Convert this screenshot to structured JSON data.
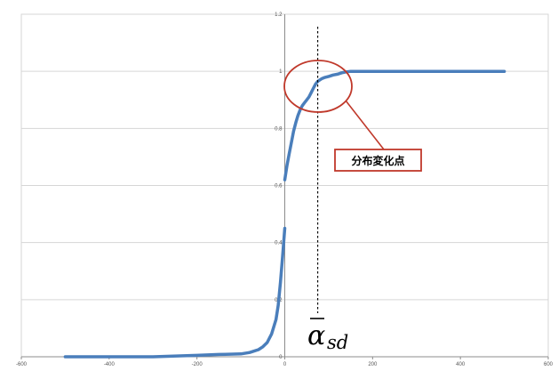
{
  "chart_data": {
    "type": "line",
    "title": "",
    "xlabel": "",
    "ylabel": "",
    "xlim": [
      -600,
      600
    ],
    "ylim": [
      0,
      1.2
    ],
    "x_ticks": [
      "-600",
      "-400",
      "-200",
      "0",
      "200",
      "400",
      "600"
    ],
    "y_ticks": [
      "0",
      "0.2",
      "0.4",
      "0.6",
      "0.8",
      "1",
      "1.2"
    ],
    "grid": true,
    "legend": "none",
    "series": [
      {
        "segments": [
          {
            "x": [
              -500,
              -400,
              -300,
              -200,
              -150,
              -100,
              -80,
              -60,
              -50,
              -40,
              -30,
              -20,
              -15,
              -10,
              -5,
              0
            ],
            "y": [
              0,
              0,
              0,
              0.005,
              0.008,
              0.01,
              0.015,
              0.025,
              0.035,
              0.05,
              0.08,
              0.13,
              0.18,
              0.26,
              0.35,
              0.45
            ]
          },
          {
            "x": [
              0,
              5,
              10,
              15,
              20,
              25,
              30,
              35,
              40,
              45,
              50,
              55,
              60,
              65,
              70,
              75,
              80,
              85,
              90,
              100,
              110,
              120,
              130,
              140,
              150,
              175,
              200,
              300,
              400,
              500
            ],
            "y": [
              0.62,
              0.67,
              0.71,
              0.75,
              0.79,
              0.82,
              0.845,
              0.865,
              0.88,
              0.89,
              0.9,
              0.91,
              0.925,
              0.94,
              0.955,
              0.965,
              0.97,
              0.975,
              0.978,
              0.982,
              0.987,
              0.99,
              0.995,
              0.998,
              1,
              1,
              1,
              1,
              1,
              1
            ]
          }
        ]
      }
    ],
    "annotations": {
      "change_point_x": 75,
      "callout_label": "分布変化点",
      "symbol_base": "α",
      "symbol_subscript": "sd",
      "line_color": "#4a7ebb",
      "annotation_color": "#c0392b"
    }
  }
}
